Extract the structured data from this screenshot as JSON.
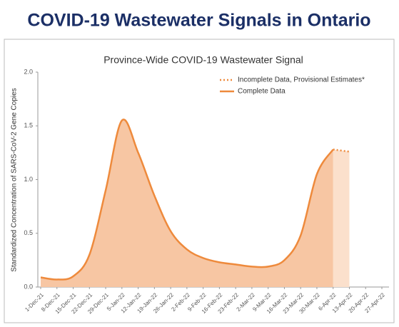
{
  "header": {
    "title": "COVID-19 Wastewater Signals in Ontario"
  },
  "chart_data": {
    "type": "line",
    "title": "Province-Wide COVID-19 Wastewater Signal",
    "y_label": "Standardized Concentration of SARS-CoV-2 Gene Copies",
    "categories": [
      "1-Dec-21",
      "8-Dec-21",
      "15-Dec-21",
      "22-Dec-21",
      "29-Dec-21",
      "5-Jan-22",
      "12-Jan-22",
      "19-Jan-22",
      "26-Jan-22",
      "2-Feb-22",
      "9-Feb-22",
      "16-Feb-22",
      "23-Feb-22",
      "2-Mar-22",
      "9-Mar-22",
      "16-Mar-22",
      "23-Mar-22",
      "30-Mar-22",
      "6-Apr-22",
      "13-Apr-22",
      "20-Apr-22",
      "27-Apr-22"
    ],
    "series": [
      {
        "name": "Incomplete Data, Provisional Estimates*",
        "color": "#ee8a3c",
        "fill": "#fbe0cc",
        "dashed": true,
        "values": [
          null,
          null,
          null,
          null,
          null,
          null,
          null,
          null,
          null,
          null,
          null,
          null,
          null,
          null,
          null,
          null,
          null,
          null,
          1.28,
          1.26,
          null,
          null
        ]
      },
      {
        "name": "Complete Data",
        "color": "#ee8a3c",
        "fill": "#f7c6a3",
        "dashed": false,
        "values": [
          0.09,
          0.07,
          0.1,
          0.3,
          0.9,
          1.55,
          1.25,
          0.85,
          0.52,
          0.35,
          0.27,
          0.23,
          0.21,
          0.19,
          0.19,
          0.25,
          0.48,
          1.05,
          1.28,
          null,
          null,
          null
        ]
      }
    ],
    "ylim": [
      0,
      2
    ],
    "yticks": [
      {
        "value": 0,
        "label": "0.0"
      },
      {
        "value": 0.5,
        "label": "0.5"
      },
      {
        "value": 1,
        "label": "1.0"
      },
      {
        "value": 1.5,
        "label": "1.5"
      },
      {
        "value": 2,
        "label": "2.0"
      }
    ],
    "legend": "upper right"
  }
}
